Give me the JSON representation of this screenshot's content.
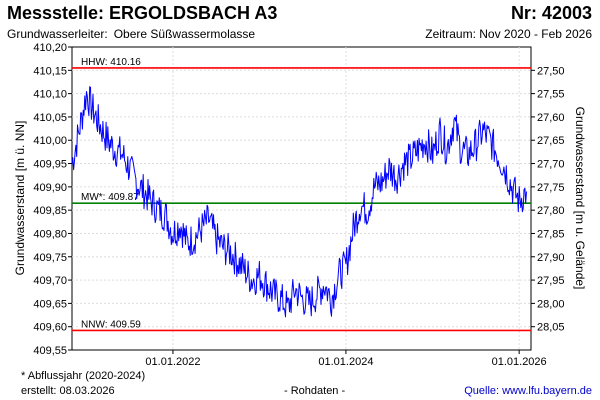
{
  "header": {
    "title": "Messstelle: ERGOLDSBACH A3",
    "number": "Nr: 42003",
    "aquifer_label": "Grundwasserleiter:",
    "aquifer_value": "Obere Süßwassermolasse",
    "period": "Zeitraum: Nov 2020 - Feb 2026"
  },
  "footer": {
    "note": "* Abflussjahr (2020-2024)",
    "created": "erstellt:  08.03.2026",
    "raw": "- Rohdaten -",
    "source": "Quelle: www.lfu.bayern.de"
  },
  "chart_data": {
    "type": "line",
    "ylabel": "Grundwasserstand [m ü. NN]",
    "y2label": "Grundwasserstand [m u. Gelände]",
    "ylim": [
      409.55,
      410.2
    ],
    "y2lim": [
      28.1,
      27.45
    ],
    "yticks": [
      "410,20",
      "410,15",
      "410,10",
      "410,05",
      "410,00",
      "409,95",
      "409,90",
      "409,85",
      "409,80",
      "409,75",
      "409,70",
      "409,65",
      "409,60",
      "409,55"
    ],
    "y2ticks": [
      "27,50",
      "27,55",
      "27,60",
      "27,65",
      "27,70",
      "27,75",
      "27,80",
      "27,85",
      "27,90",
      "27,95",
      "28,00",
      "28,05"
    ],
    "xlim": [
      "2020-11-01",
      "2026-02-20"
    ],
    "xticks": [
      {
        "date": "2022-01-01",
        "label": "01.01.2022"
      },
      {
        "date": "2024-01-01",
        "label": "01.01.2024"
      },
      {
        "date": "2026-01-01",
        "label": "01.01.2026"
      }
    ],
    "grid": true,
    "color_series": "#0000ff",
    "color_extreme": "#ff0000",
    "color_mean": "#008000",
    "reference_lines": [
      {
        "label": "HHW: 410.16",
        "value": 410.155,
        "role": "extreme"
      },
      {
        "label": "MW*: 409.87",
        "value": 409.865,
        "role": "mean"
      },
      {
        "label": "NNW: 409.59",
        "value": 409.592,
        "role": "extreme"
      }
    ],
    "series": [
      {
        "x": [
          "2020-11-01",
          "2020-12-01",
          "2021-01-01",
          "2021-02-01",
          "2021-03-01",
          "2021-04-01",
          "2021-05-01",
          "2021-06-01",
          "2021-07-01",
          "2021-08-01",
          "2021-09-01",
          "2021-10-01",
          "2021-11-01",
          "2021-12-01",
          "2022-01-01",
          "2022-02-01",
          "2022-03-01",
          "2022-04-01",
          "2022-05-01",
          "2022-06-01",
          "2022-07-01",
          "2022-08-01",
          "2022-09-01",
          "2022-10-01",
          "2022-11-01",
          "2022-12-01",
          "2023-01-01",
          "2023-02-01",
          "2023-03-01",
          "2023-04-01",
          "2023-05-01",
          "2023-06-01",
          "2023-07-01",
          "2023-08-01",
          "2023-09-01",
          "2023-10-01",
          "2023-11-01",
          "2023-12-01",
          "2024-01-01",
          "2024-02-01",
          "2024-03-01",
          "2024-04-01",
          "2024-05-01",
          "2024-06-01",
          "2024-07-01",
          "2024-08-01",
          "2024-09-01",
          "2024-10-01",
          "2024-11-01",
          "2024-12-01",
          "2025-01-01",
          "2025-02-01",
          "2025-03-01",
          "2025-04-01",
          "2025-05-01",
          "2025-06-01",
          "2025-07-01",
          "2025-08-01",
          "2025-09-01",
          "2025-10-01",
          "2025-11-01",
          "2025-12-01",
          "2026-01-01",
          "2026-02-01"
        ],
        "values": [
          409.95,
          410.02,
          410.1,
          410.06,
          410.03,
          410.0,
          409.98,
          409.97,
          409.94,
          409.91,
          409.89,
          409.87,
          409.85,
          409.84,
          409.8,
          409.82,
          409.78,
          409.79,
          409.81,
          409.83,
          409.79,
          409.77,
          409.76,
          409.74,
          409.72,
          409.7,
          409.71,
          409.69,
          409.67,
          409.66,
          409.64,
          409.68,
          409.66,
          409.65,
          409.67,
          409.69,
          409.66,
          409.71,
          409.73,
          409.81,
          409.86,
          409.85,
          409.9,
          409.91,
          409.94,
          409.92,
          409.95,
          409.96,
          409.98,
          410.0,
          409.97,
          410.02,
          409.98,
          410.04,
          409.98,
          409.97,
          409.99,
          410.02,
          410.0,
          409.97,
          409.94,
          409.9,
          409.87,
          409.89
        ]
      }
    ]
  }
}
